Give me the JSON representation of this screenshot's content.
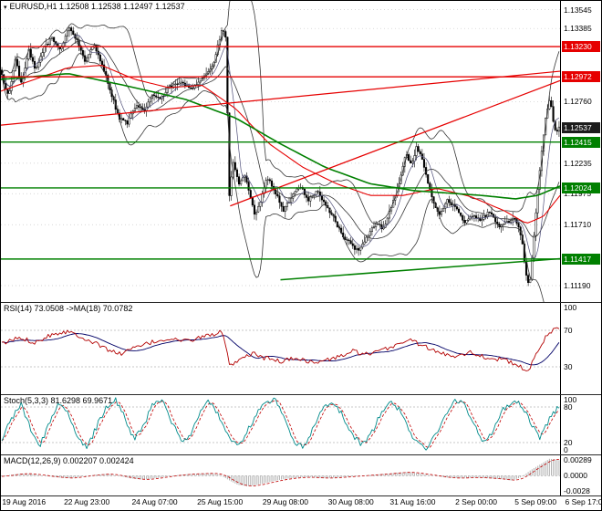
{
  "header": {
    "title_icon": "▾",
    "main_title": "EURUSD,H1 1.12508 1.12538 1.12497 1.12537"
  },
  "panels": {
    "rsi_title": "RSI(14) 73.0508 ->MA(18) 70.0782",
    "stoch_title": "Stoch(5,3,3) 81.6298 69.9671",
    "macd_title": "MACD(12,26,9) 0.002207 0.002424"
  },
  "chart_data": {
    "type": "candlestick",
    "symbol": "EURUSD",
    "timeframe": "H1",
    "ohlc": {
      "open": 1.12508,
      "high": 1.12538,
      "low": 1.12497,
      "close": 1.12537
    },
    "colors": {
      "candle": "#000000",
      "band": "#383838",
      "ema": "#50507a",
      "red": "#e60000",
      "green": "#008000",
      "grid": "#c9c9c9",
      "grid2": "#b5b5b5",
      "current_badge_bg": "#1c1c1c",
      "rsi_line": "#b30000",
      "rsi_ma": "#000066",
      "stoch_main": "#008b8b",
      "stoch_signal": "#c00000",
      "macd_hist": "#b3b3b3",
      "macd_signal": "#c00000"
    },
    "main": {
      "bars": 290,
      "noise": 0.0003,
      "wick": 0.00055,
      "price_min": 1.1105,
      "price_max": 1.1362,
      "axis_labels": [
        {
          "label": "1.13545",
          "price": 1.13545
        },
        {
          "label": "1.13385",
          "price": 1.13385
        },
        {
          "label": "1.12760",
          "price": 1.1276
        },
        {
          "label": "1.12235",
          "price": 1.12235
        },
        {
          "label": "1.11975",
          "price": 1.11975
        },
        {
          "label": "1.11710",
          "price": 1.1171
        },
        {
          "label": "1.11190",
          "price": 1.1119
        }
      ],
      "levels": [
        {
          "label": "1.13230",
          "price": 1.1323,
          "color": "red"
        },
        {
          "label": "1.12972",
          "price": 1.12972,
          "color": "red"
        },
        {
          "label": "1.12415",
          "price": 1.12415,
          "color": "green"
        },
        {
          "label": "1.12024",
          "price": 1.12024,
          "color": "green"
        },
        {
          "label": "1.11417",
          "price": 1.11417,
          "color": "green"
        }
      ],
      "current": {
        "label": "1.12537",
        "price": 1.12537
      },
      "close_anchors": [
        [
          0.0,
          1.1298
        ],
        [
          0.012,
          1.128
        ],
        [
          0.024,
          1.1312
        ],
        [
          0.036,
          1.129
        ],
        [
          0.048,
          1.132
        ],
        [
          0.06,
          1.1302
        ],
        [
          0.075,
          1.1322
        ],
        [
          0.09,
          1.133
        ],
        [
          0.105,
          1.132
        ],
        [
          0.12,
          1.134
        ],
        [
          0.135,
          1.1328
        ],
        [
          0.15,
          1.131
        ],
        [
          0.165,
          1.1325
        ],
        [
          0.18,
          1.1308
        ],
        [
          0.195,
          1.1285
        ],
        [
          0.21,
          1.1262
        ],
        [
          0.225,
          1.1258
        ],
        [
          0.24,
          1.1272
        ],
        [
          0.255,
          1.1268
        ],
        [
          0.27,
          1.1282
        ],
        [
          0.285,
          1.1278
        ],
        [
          0.3,
          1.1288
        ],
        [
          0.32,
          1.1292
        ],
        [
          0.34,
          1.1288
        ],
        [
          0.36,
          1.1296
        ],
        [
          0.38,
          1.1308
        ],
        [
          0.395,
          1.1338
        ],
        [
          0.402,
          1.133
        ],
        [
          0.408,
          1.1195
        ],
        [
          0.415,
          1.1225
        ],
        [
          0.425,
          1.1205
        ],
        [
          0.435,
          1.1215
        ],
        [
          0.445,
          1.1195
        ],
        [
          0.455,
          1.1178
        ],
        [
          0.465,
          1.1192
        ],
        [
          0.475,
          1.1212
        ],
        [
          0.49,
          1.12
        ],
        [
          0.505,
          1.1182
        ],
        [
          0.52,
          1.1195
        ],
        [
          0.535,
          1.1205
        ],
        [
          0.55,
          1.1192
        ],
        [
          0.565,
          1.12
        ],
        [
          0.58,
          1.1188
        ],
        [
          0.595,
          1.1178
        ],
        [
          0.61,
          1.1162
        ],
        [
          0.625,
          1.1155
        ],
        [
          0.64,
          1.1148
        ],
        [
          0.655,
          1.116
        ],
        [
          0.67,
          1.1172
        ],
        [
          0.685,
          1.1168
        ],
        [
          0.7,
          1.1188
        ],
        [
          0.715,
          1.121
        ],
        [
          0.725,
          1.1232
        ],
        [
          0.735,
          1.1222
        ],
        [
          0.745,
          1.1238
        ],
        [
          0.755,
          1.1225
        ],
        [
          0.765,
          1.1205
        ],
        [
          0.775,
          1.119
        ],
        [
          0.785,
          1.118
        ],
        [
          0.8,
          1.1192
        ],
        [
          0.815,
          1.1185
        ],
        [
          0.83,
          1.1172
        ],
        [
          0.845,
          1.118
        ],
        [
          0.86,
          1.1175
        ],
        [
          0.875,
          1.1182
        ],
        [
          0.89,
          1.117
        ],
        [
          0.905,
          1.1172
        ],
        [
          0.92,
          1.1178
        ],
        [
          0.933,
          1.116
        ],
        [
          0.94,
          1.113
        ],
        [
          0.947,
          1.1118
        ],
        [
          0.953,
          1.115
        ],
        [
          0.96,
          1.119
        ],
        [
          0.968,
          1.123
        ],
        [
          0.976,
          1.1262
        ],
        [
          0.984,
          1.128
        ],
        [
          0.99,
          1.1258
        ],
        [
          0.995,
          1.1248
        ],
        [
          1.0,
          1.1254
        ]
      ],
      "red_ma": [
        [
          0,
          1.1285
        ],
        [
          0.06,
          1.1295
        ],
        [
          0.12,
          1.1305
        ],
        [
          0.18,
          1.1307
        ],
        [
          0.24,
          1.1295
        ],
        [
          0.3,
          1.1288
        ],
        [
          0.36,
          1.129
        ],
        [
          0.42,
          1.127
        ],
        [
          0.48,
          1.124
        ],
        [
          0.54,
          1.122
        ],
        [
          0.6,
          1.1206
        ],
        [
          0.66,
          1.1196
        ],
        [
          0.72,
          1.1196
        ],
        [
          0.78,
          1.1202
        ],
        [
          0.84,
          1.1195
        ],
        [
          0.9,
          1.1183
        ],
        [
          0.94,
          1.1172
        ],
        [
          0.97,
          1.1178
        ],
        [
          1.0,
          1.1196
        ]
      ],
      "green_ma": [
        [
          0,
          1.1295
        ],
        [
          0.12,
          1.13
        ],
        [
          0.22,
          1.129
        ],
        [
          0.33,
          1.1278
        ],
        [
          0.42,
          1.1262
        ],
        [
          0.5,
          1.124
        ],
        [
          0.58,
          1.122
        ],
        [
          0.66,
          1.1206
        ],
        [
          0.74,
          1.12
        ],
        [
          0.8,
          1.1198
        ],
        [
          0.86,
          1.1196
        ],
        [
          0.92,
          1.1193
        ],
        [
          0.96,
          1.1196
        ],
        [
          1.0,
          1.1204
        ]
      ],
      "trend_lines": [
        {
          "t1": 0.0,
          "p1": 1.1256,
          "t2": 1.0,
          "p2": 1.1302,
          "color": "red",
          "w": 1.2
        },
        {
          "t1": 0.41,
          "p1": 1.1187,
          "t2": 1.0,
          "p2": 1.1294,
          "color": "red",
          "w": 1.2
        },
        {
          "t1": 0.5,
          "p1": 1.1124,
          "t2": 1.0,
          "p2": 1.1142,
          "color": "green",
          "w": 1.5
        }
      ]
    },
    "rsi": {
      "levels": [
        70,
        30
      ],
      "axis_labels": [
        {
          "label": "100",
          "v": 100
        },
        {
          "label": "70",
          "v": 70
        },
        {
          "label": "30",
          "v": 30
        }
      ],
      "jitter": 2.5,
      "ma_window": 16,
      "current": 73.0508,
      "ma_current": 70.0782,
      "anchors": [
        [
          0,
          55
        ],
        [
          0.03,
          62
        ],
        [
          0.06,
          57
        ],
        [
          0.09,
          66
        ],
        [
          0.12,
          69
        ],
        [
          0.15,
          61
        ],
        [
          0.18,
          52
        ],
        [
          0.21,
          44
        ],
        [
          0.24,
          51
        ],
        [
          0.27,
          57
        ],
        [
          0.3,
          61
        ],
        [
          0.33,
          58
        ],
        [
          0.36,
          63
        ],
        [
          0.395,
          68
        ],
        [
          0.41,
          30
        ],
        [
          0.43,
          38
        ],
        [
          0.45,
          45
        ],
        [
          0.47,
          40
        ],
        [
          0.5,
          36
        ],
        [
          0.53,
          40
        ],
        [
          0.56,
          34
        ],
        [
          0.6,
          40
        ],
        [
          0.63,
          47
        ],
        [
          0.66,
          43
        ],
        [
          0.7,
          52
        ],
        [
          0.73,
          60
        ],
        [
          0.75,
          55
        ],
        [
          0.78,
          46
        ],
        [
          0.81,
          42
        ],
        [
          0.84,
          46
        ],
        [
          0.87,
          40
        ],
        [
          0.9,
          38
        ],
        [
          0.93,
          30
        ],
        [
          0.945,
          25
        ],
        [
          0.96,
          45
        ],
        [
          0.975,
          62
        ],
        [
          0.99,
          71
        ],
        [
          1.0,
          73
        ]
      ]
    },
    "stoch": {
      "levels": [
        80,
        20
      ],
      "axis_labels": [
        {
          "label": "100",
          "v": 100
        },
        {
          "label": "80",
          "v": 80
        },
        {
          "label": "20",
          "v": 20
        },
        {
          "label": "0",
          "v": 0
        }
      ],
      "jitter": 5,
      "signal_window": 4,
      "current": 81.6298,
      "signal_current": 69.9671,
      "pattern": [
        25,
        60,
        85,
        45,
        15,
        50,
        88,
        70,
        30,
        12,
        45,
        80,
        95,
        62,
        25,
        48,
        85,
        92,
        55,
        20,
        35,
        72,
        90,
        65,
        28,
        12,
        40,
        70,
        88,
        92,
        58,
        22,
        12,
        45,
        78,
        90,
        68,
        38,
        15,
        30,
        65,
        88,
        78,
        45,
        18,
        10,
        35,
        70,
        92,
        82,
        50,
        20,
        40,
        75,
        90,
        85,
        55,
        28,
        60,
        82
      ]
    },
    "macd": {
      "max": 0.00289,
      "min": -0.0028,
      "unit": 0.001,
      "signal_window": 6,
      "current": 0.002207,
      "signal_current": 0.002424,
      "axis_labels": [
        {
          "label": "0.00289",
          "v": 0.00289
        },
        {
          "label": "0.0000",
          "v": 0
        },
        {
          "label": "-0.0028",
          "v": -0.0028
        }
      ],
      "pattern": [
        -0.1,
        0.15,
        0.3,
        0.25,
        0.1,
        -0.1,
        -0.25,
        -0.35,
        -0.2,
        0.0,
        0.15,
        0.25,
        0.1,
        -0.2,
        -0.45,
        -0.55,
        -0.4,
        -0.2,
        0.0,
        0.15,
        0.25,
        0.3,
        0.35,
        0.2,
        -0.6,
        -1.3,
        -1.5,
        -1.3,
        -1.0,
        -0.7,
        -0.45,
        -0.3,
        -0.2,
        -0.25,
        -0.35,
        -0.3,
        -0.2,
        -0.1,
        0.0,
        0.1,
        0.2,
        0.3,
        0.45,
        0.5,
        0.35,
        0.15,
        -0.05,
        -0.25,
        -0.35,
        -0.3,
        -0.25,
        -0.3,
        -0.4,
        -0.5,
        -0.7,
        -0.2,
        0.8,
        1.6,
        2.42,
        2.2
      ]
    },
    "time_axis": [
      {
        "label": "19 Aug 2016",
        "x": 0.002
      },
      {
        "label": "22 Aug 23:00",
        "x": 0.105
      },
      {
        "label": "24 Aug 07:00",
        "x": 0.218
      },
      {
        "label": "25 Aug 15:00",
        "x": 0.327
      },
      {
        "label": "29 Aug 08:00",
        "x": 0.436
      },
      {
        "label": "30 Aug 08:00",
        "x": 0.545
      },
      {
        "label": "31 Aug 16:00",
        "x": 0.648
      },
      {
        "label": "2 Sep 00:00",
        "x": 0.757
      },
      {
        "label": "5 Sep 09:00",
        "x": 0.856
      },
      {
        "label": "6 Sep 17:00",
        "x": 0.94
      }
    ]
  }
}
